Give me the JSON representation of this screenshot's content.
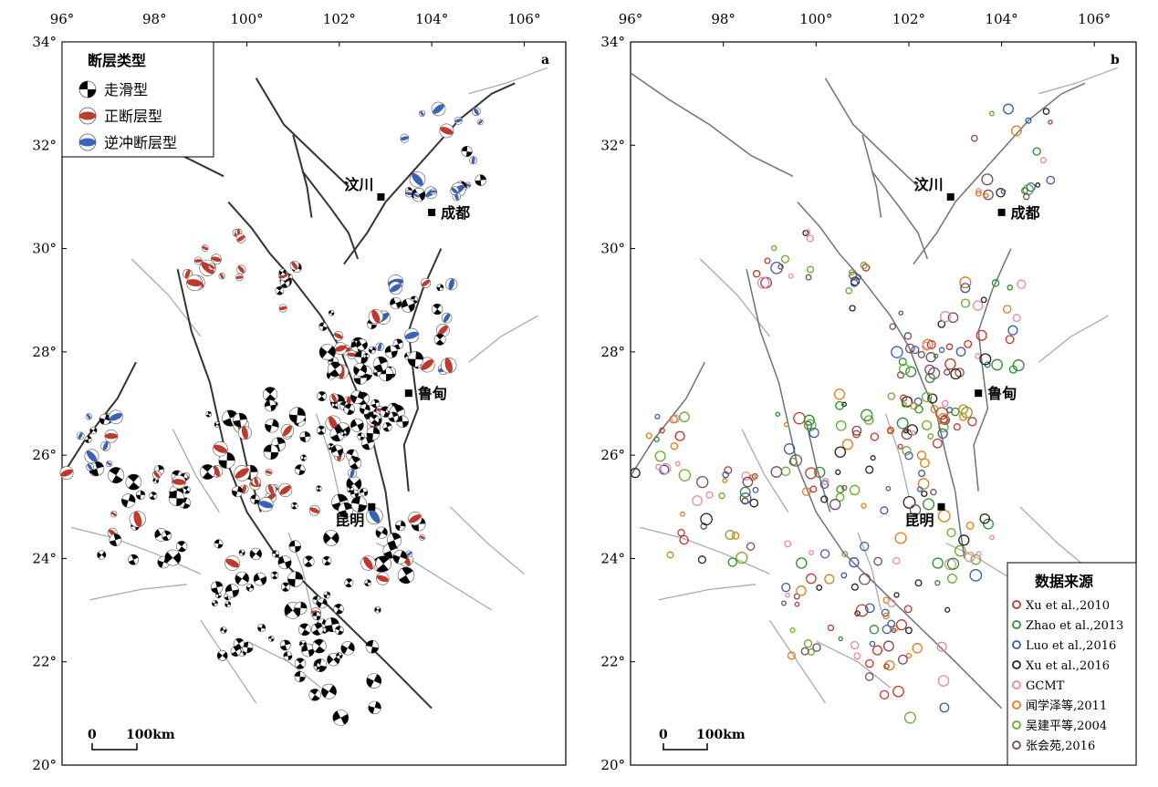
{
  "axes": {
    "lon_ticks": [
      "96°",
      "98°",
      "100°",
      "102°",
      "104°",
      "106°"
    ],
    "lat_ticks": [
      "34°",
      "32°",
      "30°",
      "28°",
      "26°",
      "24°",
      "22°",
      "20°"
    ],
    "lon_range": [
      96,
      106.9
    ],
    "lat_range": [
      20,
      34
    ]
  },
  "panel_a": {
    "label": "a",
    "legend_title": "断层类型",
    "legend_items": [
      {
        "label": "走滑型",
        "kind": "strike-slip",
        "color": "#000000"
      },
      {
        "label": "正断层型",
        "kind": "normal",
        "color": "#c0392b"
      },
      {
        "label": "逆冲断层型",
        "kind": "thrust",
        "color": "#3a63b8"
      }
    ],
    "scale_label": "100km"
  },
  "panel_b": {
    "label": "b",
    "legend_title": "数据来源",
    "legend_items": [
      {
        "label": "Xu et al.,2010",
        "color": "#c0392b"
      },
      {
        "label": "Zhao et al.,2013",
        "color": "#2e8b2e"
      },
      {
        "label": "Luo et al.,2016",
        "color": "#3a5aa8"
      },
      {
        "label": "Xu et al.,2016",
        "color": "#222222"
      },
      {
        "label": "GCMT",
        "color": "#e88a9a"
      },
      {
        "label": "闻学泽等,2011",
        "color": "#e07b1a"
      },
      {
        "label": "吴建平等,2004",
        "color": "#6aaa2a"
      },
      {
        "label": "张会苑,2016",
        "color": "#7a4a5a"
      }
    ],
    "scale_label": "100km"
  },
  "cities": [
    {
      "name": "汶川",
      "lon": 102.9,
      "lat": 31.0
    },
    {
      "name": "成都",
      "lon": 104.0,
      "lat": 30.7
    },
    {
      "name": "鲁甸",
      "lon": 103.5,
      "lat": 27.2
    },
    {
      "name": "昆明",
      "lon": 102.7,
      "lat": 25.0
    }
  ],
  "colors": {
    "strike_slip": "#000000",
    "normal": "#c0392b",
    "thrust": "#3a63b8",
    "major_fault": "#333333",
    "minor_fault": "#aaaaaa"
  }
}
